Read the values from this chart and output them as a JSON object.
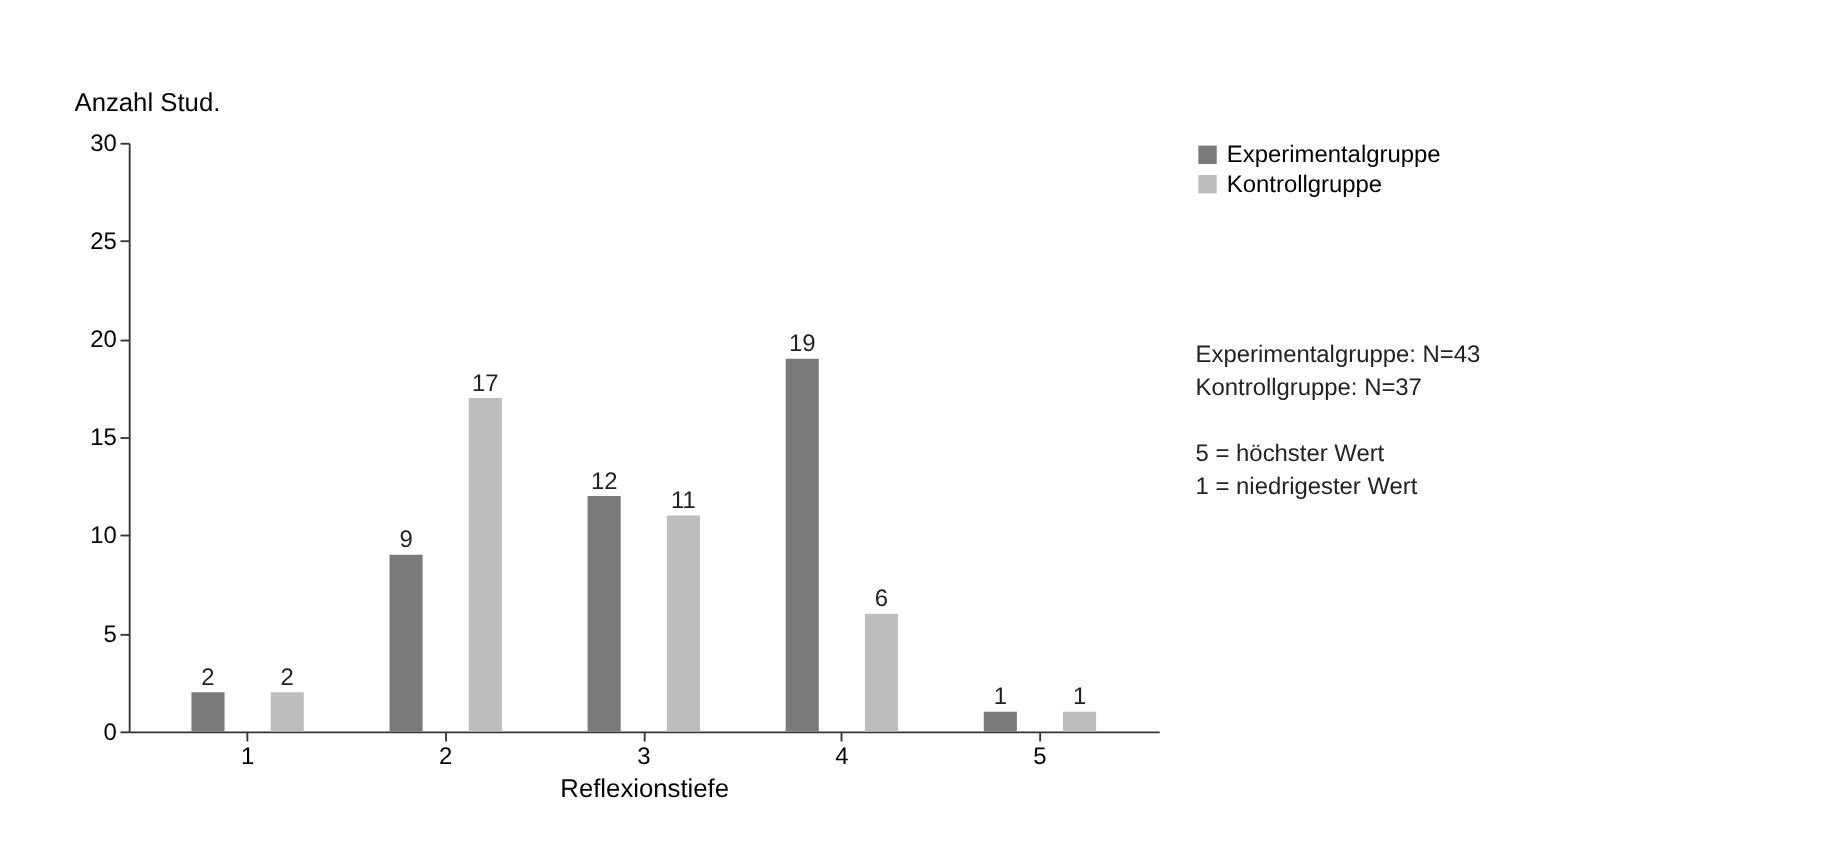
{
  "chart_data": {
    "type": "bar",
    "xlabel": "Reflexionstiefe",
    "ylabel": "Anzahl Stud.",
    "categories": [
      "1",
      "2",
      "3",
      "4",
      "5"
    ],
    "series": [
      {
        "name": "Experimentalgruppe",
        "color": "#7a7a7a",
        "values": [
          2,
          9,
          12,
          19,
          1
        ]
      },
      {
        "name": "Kontrollgruppe",
        "color": "#bdbdbd",
        "values": [
          2,
          17,
          11,
          6,
          1
        ]
      }
    ],
    "ylim": [
      0,
      30
    ],
    "yticks": [
      0,
      5,
      10,
      15,
      20,
      25,
      30
    ],
    "grid": false,
    "legend": "right",
    "data_labels": true,
    "annotations": [
      "Experimentalgruppe: N=43",
      "Kontrollgruppe: N=37",
      "5 = höchster Wert",
      "1 = niedrigester Wert"
    ]
  }
}
